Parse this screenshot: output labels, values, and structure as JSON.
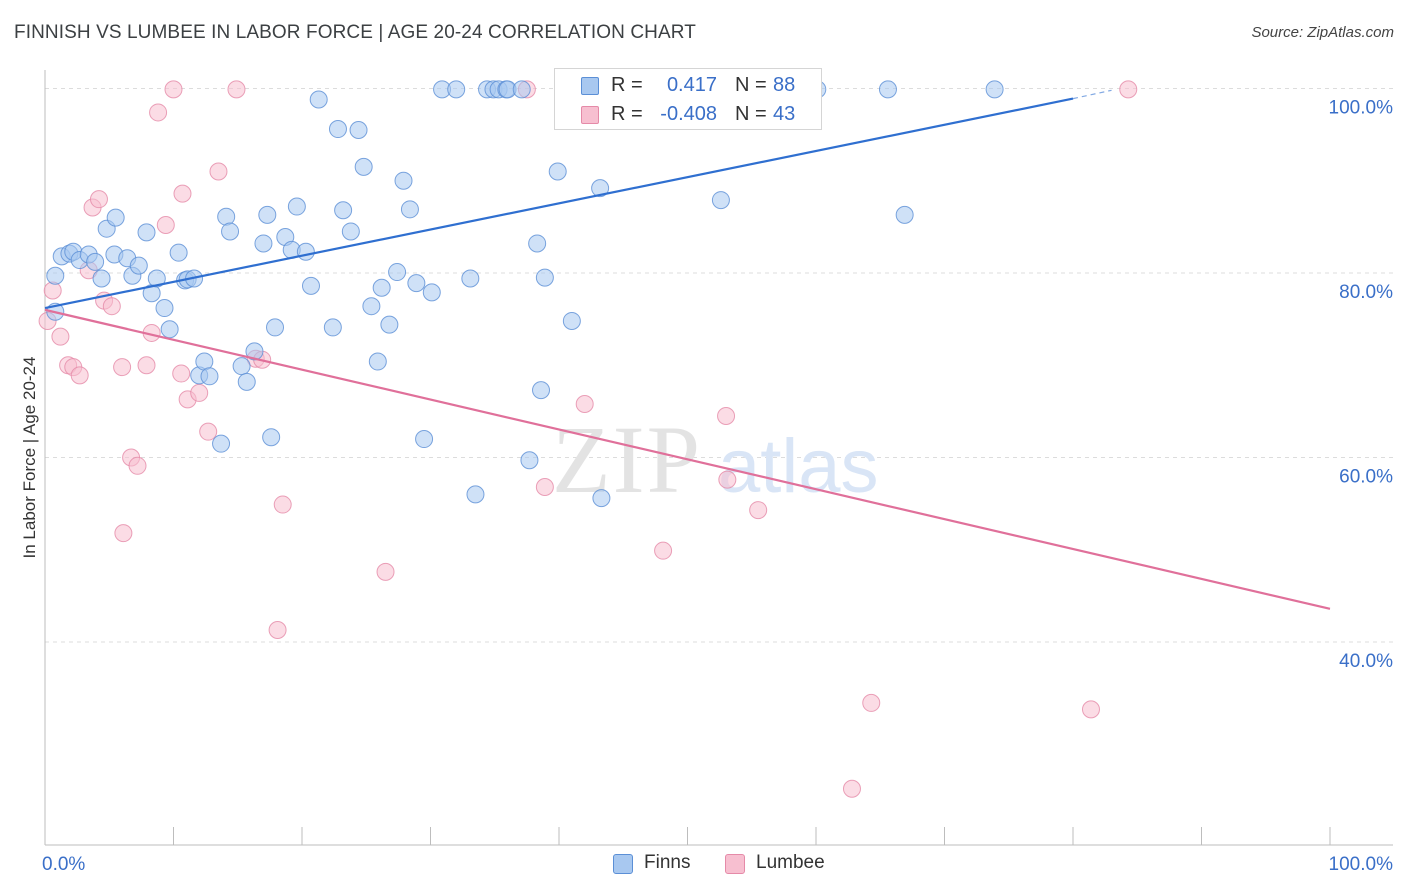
{
  "title": "FINNISH VS LUMBEE IN LABOR FORCE | AGE 20-24 CORRELATION CHART",
  "source": "Source: ZipAtlas.com",
  "watermark": {
    "zip": "ZIP",
    "atlas": "atlas"
  },
  "colors": {
    "finns_fill": "#a8c8f0",
    "finns_stroke": "#5b8fd6",
    "finns_line": "#2f6fd0",
    "lumbee_fill": "#f7bfd0",
    "lumbee_stroke": "#e58aa8",
    "lumbee_line": "#e0709a",
    "axis_text": "#3a6fc8",
    "grid": "#dcdcdc"
  },
  "legend": {
    "finns": {
      "r_label": "R =",
      "r_value": "0.417",
      "n_label": "N =",
      "n_value": "88"
    },
    "lumbee": {
      "r_label": "R =",
      "r_value": "-0.408",
      "n_label": "N =",
      "n_value": "43"
    }
  },
  "chart_data": {
    "type": "scatter",
    "xlabel": "",
    "ylabel": "In Labor Force | Age 20-24",
    "x_ticks": [
      "0.0%",
      "100.0%"
    ],
    "y_ticks": [
      "40.0%",
      "60.0%",
      "80.0%",
      "100.0%"
    ],
    "xlim": [
      0,
      100
    ],
    "ylim": [
      18,
      102
    ],
    "grid": true,
    "legend_position": "bottom",
    "series": [
      {
        "name": "Finns",
        "points": [
          [
            0.8,
            75.8
          ],
          [
            0.8,
            79.7
          ],
          [
            1.3,
            81.8
          ],
          [
            1.9,
            82.1
          ],
          [
            2.2,
            82.3
          ],
          [
            2.7,
            81.4
          ],
          [
            3.4,
            82
          ],
          [
            3.9,
            81.2
          ],
          [
            4.4,
            79.4
          ],
          [
            4.8,
            84.8
          ],
          [
            5.5,
            86
          ],
          [
            5.4,
            82
          ],
          [
            6.4,
            81.6
          ],
          [
            6.8,
            79.7
          ],
          [
            7.3,
            80.8
          ],
          [
            7.9,
            84.4
          ],
          [
            8.3,
            77.8
          ],
          [
            8.7,
            79.4
          ],
          [
            9.3,
            76.2
          ],
          [
            9.7,
            73.9
          ],
          [
            10.4,
            82.2
          ],
          [
            10.9,
            79.2
          ],
          [
            11.1,
            79.3
          ],
          [
            11.6,
            79.4
          ],
          [
            12,
            68.9
          ],
          [
            12.4,
            70.4
          ],
          [
            12.8,
            68.8
          ],
          [
            13.7,
            61.5
          ],
          [
            14.1,
            86.1
          ],
          [
            14.4,
            84.5
          ],
          [
            15.3,
            69.9
          ],
          [
            15.7,
            68.2
          ],
          [
            16.3,
            71.5
          ],
          [
            17,
            83.2
          ],
          [
            17.3,
            86.3
          ],
          [
            17.6,
            62.2
          ],
          [
            17.9,
            74.1
          ],
          [
            18.7,
            83.9
          ],
          [
            19.2,
            82.5
          ],
          [
            19.6,
            87.2
          ],
          [
            20.3,
            82.3
          ],
          [
            20.7,
            78.6
          ],
          [
            21.3,
            98.8
          ],
          [
            22.4,
            74.1
          ],
          [
            22.8,
            95.6
          ],
          [
            23.2,
            86.8
          ],
          [
            23.8,
            84.5
          ],
          [
            24.4,
            95.5
          ],
          [
            24.8,
            91.5
          ],
          [
            25.4,
            76.4
          ],
          [
            25.9,
            70.4
          ],
          [
            26.2,
            78.4
          ],
          [
            26.8,
            74.4
          ],
          [
            27.4,
            80.1
          ],
          [
            27.9,
            90
          ],
          [
            28.4,
            86.9
          ],
          [
            28.9,
            78.9
          ],
          [
            29.5,
            62
          ],
          [
            30.1,
            77.9
          ],
          [
            30.9,
            99.9
          ],
          [
            32,
            99.9
          ],
          [
            33.1,
            79.4
          ],
          [
            33.5,
            56
          ],
          [
            34.4,
            99.9
          ],
          [
            34.9,
            99.9
          ],
          [
            35.3,
            99.9
          ],
          [
            35.9,
            99.9
          ],
          [
            36,
            99.9
          ],
          [
            37.1,
            99.9
          ],
          [
            37.7,
            59.7
          ],
          [
            38.3,
            83.2
          ],
          [
            38.6,
            67.3
          ],
          [
            38.9,
            79.5
          ],
          [
            39.9,
            91
          ],
          [
            41,
            74.8
          ],
          [
            41.9,
            99.9
          ],
          [
            42.5,
            99.9
          ],
          [
            43.2,
            89.2
          ],
          [
            43.3,
            55.6
          ],
          [
            44,
            99.9
          ],
          [
            49.6,
            99.9
          ],
          [
            52.6,
            87.9
          ],
          [
            57.6,
            99.9
          ],
          [
            60.1,
            99.9
          ],
          [
            65.6,
            99.9
          ],
          [
            66.9,
            86.3
          ],
          [
            73.9,
            99.9
          ],
          [
            41.9,
            99.9
          ]
        ]
      },
      {
        "name": "Lumbee",
        "points": [
          [
            0.2,
            74.8
          ],
          [
            0.6,
            78.1
          ],
          [
            1.2,
            73.1
          ],
          [
            1.8,
            70
          ],
          [
            2.2,
            69.8
          ],
          [
            2.7,
            68.9
          ],
          [
            3.4,
            80.3
          ],
          [
            3.7,
            87.1
          ],
          [
            4.2,
            88
          ],
          [
            4.6,
            77
          ],
          [
            5.2,
            76.4
          ],
          [
            6,
            69.8
          ],
          [
            6.1,
            51.8
          ],
          [
            6.7,
            60
          ],
          [
            7.2,
            59.1
          ],
          [
            7.9,
            70
          ],
          [
            8.3,
            73.5
          ],
          [
            8.8,
            97.4
          ],
          [
            9.4,
            85.2
          ],
          [
            10,
            99.9
          ],
          [
            10.6,
            69.1
          ],
          [
            10.7,
            88.6
          ],
          [
            11.1,
            66.3
          ],
          [
            12,
            67
          ],
          [
            12.7,
            62.8
          ],
          [
            13.5,
            91
          ],
          [
            14.9,
            99.9
          ],
          [
            16.4,
            70.7
          ],
          [
            16.9,
            70.6
          ],
          [
            18.5,
            54.9
          ],
          [
            18.1,
            41.3
          ],
          [
            26.5,
            47.6
          ],
          [
            37.5,
            99.9
          ],
          [
            38.9,
            56.8
          ],
          [
            42,
            65.8
          ],
          [
            48.1,
            49.9
          ],
          [
            53,
            64.5
          ],
          [
            53.1,
            57.6
          ],
          [
            55.5,
            54.3
          ],
          [
            62.8,
            24.1
          ],
          [
            64.3,
            33.4
          ],
          [
            81.4,
            32.7
          ],
          [
            84.3,
            99.9
          ]
        ]
      }
    ],
    "trend_lines": [
      {
        "name": "Finns",
        "x0": 0,
        "y0": 76.2,
        "x1": 80,
        "y1": 98.9,
        "dash_to_x": 83,
        "dash_to_y": 99.8
      },
      {
        "name": "Lumbee",
        "x0": 0,
        "y0": 76.0,
        "x1": 100,
        "y1": 43.6
      }
    ]
  }
}
